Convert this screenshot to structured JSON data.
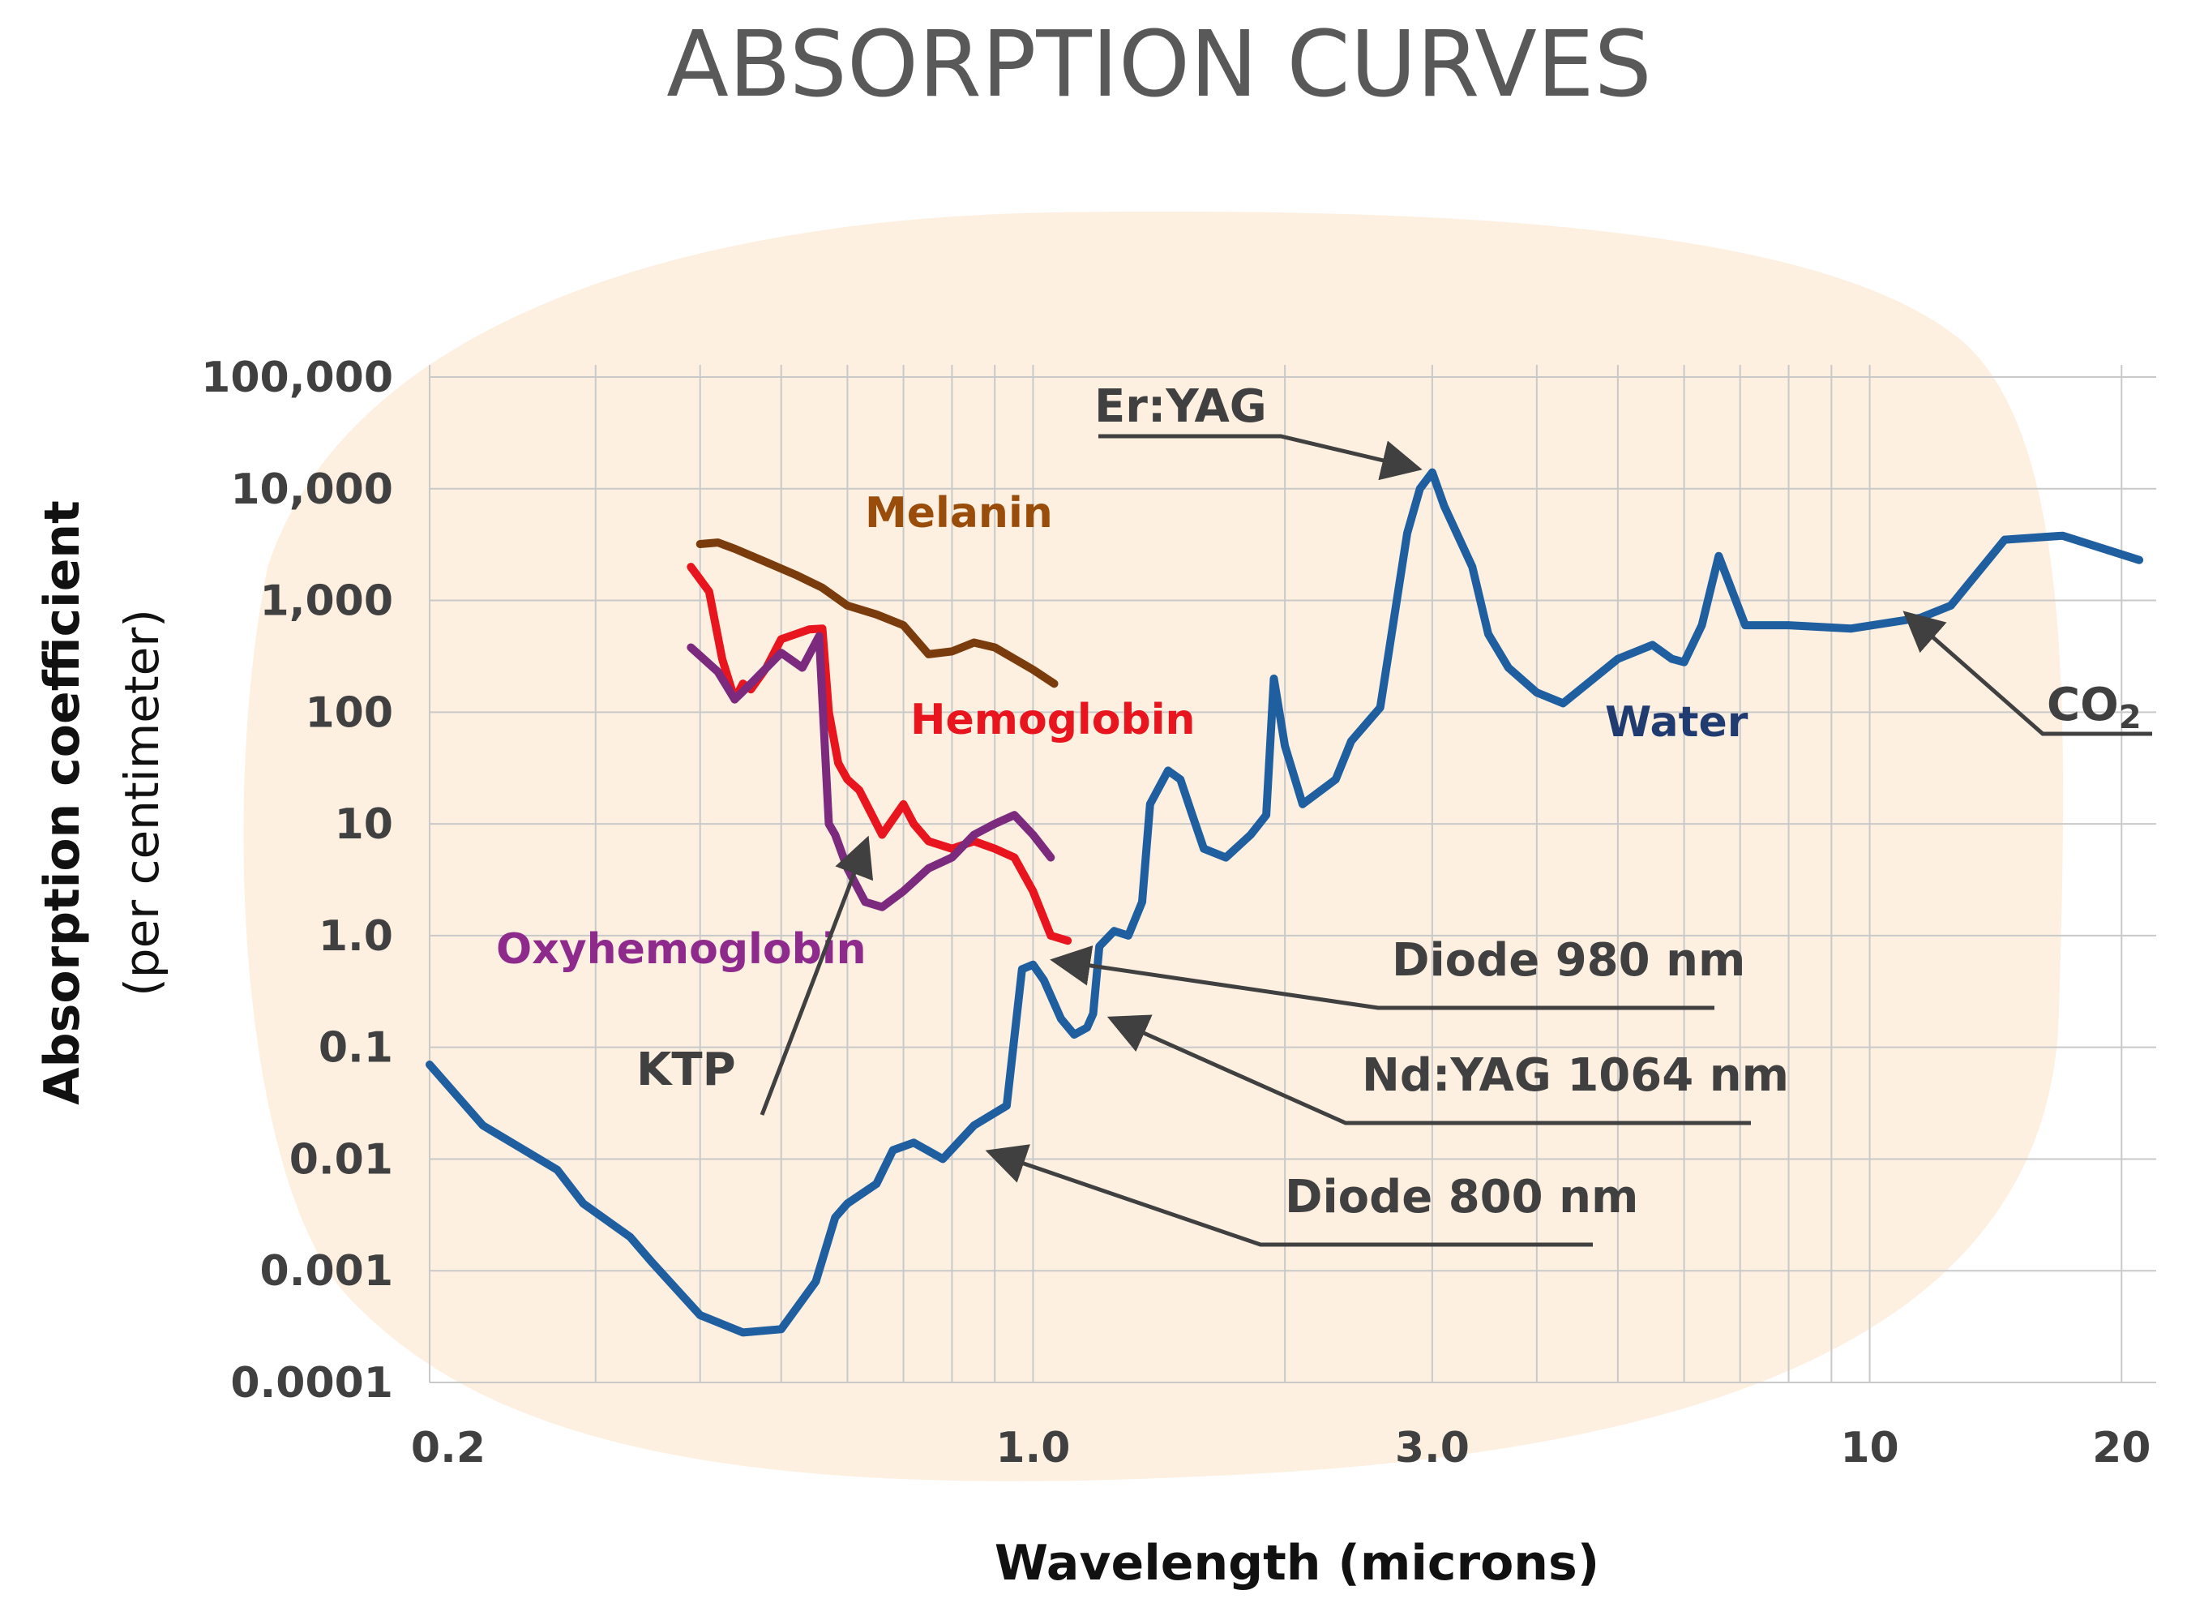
{
  "chart_data": {
    "type": "line",
    "title": "ABSORPTION CURVES",
    "xlabel": "Wavelength (microns)",
    "ylabel": "Absorption coefficient",
    "ylabel_sub": "(per centimeter)",
    "x_scale": "log",
    "y_scale": "log",
    "xlim": [
      0.19,
      22
    ],
    "ylim": [
      0.0001,
      100000
    ],
    "x_ticks": [
      {
        "value": 0.2,
        "label": "0.2"
      },
      {
        "value": 1.0,
        "label": "1.0"
      },
      {
        "value": 3.0,
        "label": "3.0"
      },
      {
        "value": 10,
        "label": "10"
      },
      {
        "value": 20,
        "label": "20"
      }
    ],
    "y_ticks": [
      {
        "value": 100000,
        "label": "100,000"
      },
      {
        "value": 10000,
        "label": "10,000"
      },
      {
        "value": 1000,
        "label": "1,000"
      },
      {
        "value": 100,
        "label": "100"
      },
      {
        "value": 10,
        "label": "10"
      },
      {
        "value": 1,
        "label": "1.0"
      },
      {
        "value": 0.1,
        "label": "0.1"
      },
      {
        "value": 0.01,
        "label": "0.01"
      },
      {
        "value": 0.001,
        "label": "0.001"
      },
      {
        "value": 0.0001,
        "label": "0.0001"
      }
    ],
    "x_gridlines": [
      0.3,
      0.4,
      0.5,
      0.6,
      0.7,
      0.8,
      0.9,
      1.0,
      2,
      3,
      4,
      5,
      6,
      7,
      8,
      9,
      10,
      20
    ],
    "grid": true,
    "series": [
      {
        "name": "Water",
        "label": "Water",
        "color": "#1f5fa0",
        "label_color": "#1f3b70",
        "x": [
          0.19,
          0.22,
          0.27,
          0.29,
          0.33,
          0.35,
          0.4,
          0.45,
          0.5,
          0.55,
          0.58,
          0.6,
          0.65,
          0.68,
          0.72,
          0.78,
          0.85,
          0.93,
          0.97,
          1.0,
          1.03,
          1.08,
          1.12,
          1.16,
          1.18,
          1.2,
          1.25,
          1.3,
          1.35,
          1.38,
          1.45,
          1.5,
          1.55,
          1.6,
          1.7,
          1.82,
          1.9,
          1.94,
          2.0,
          2.1,
          2.3,
          2.4,
          2.6,
          2.8,
          2.9,
          3.0,
          3.1,
          3.35,
          3.5,
          3.7,
          4.0,
          4.3,
          5.0,
          5.5,
          5.8,
          6.0,
          6.3,
          6.6,
          7.1,
          8.0,
          9.5,
          11.5,
          12.5,
          14.5,
          17,
          21
        ],
        "y": [
          0.07,
          0.02,
          0.008,
          0.004,
          0.002,
          0.0012,
          0.0004,
          0.00028,
          0.0003,
          0.0008,
          0.003,
          0.004,
          0.006,
          0.012,
          0.014,
          0.01,
          0.02,
          0.03,
          0.5,
          0.55,
          0.4,
          0.18,
          0.13,
          0.15,
          0.2,
          0.8,
          1.1,
          1.0,
          2.0,
          15,
          30,
          25,
          12,
          6,
          5,
          8,
          12,
          200,
          50,
          15,
          25,
          55,
          110,
          4000,
          10000,
          14000,
          7000,
          2000,
          500,
          250,
          150,
          120,
          300,
          400,
          300,
          280,
          600,
          2500,
          600,
          600,
          560,
          700,
          900,
          3500,
          3800,
          2300
        ]
      },
      {
        "name": "Melanin",
        "label": "Melanin",
        "color": "#7a3c0c",
        "label_color": "#9a4d0a",
        "x": [
          0.4,
          0.42,
          0.44,
          0.48,
          0.52,
          0.56,
          0.6,
          0.65,
          0.7,
          0.75,
          0.8,
          0.85,
          0.9,
          0.95,
          1.0,
          1.06
        ],
        "y": [
          3200,
          3300,
          2900,
          2200,
          1700,
          1300,
          900,
          750,
          600,
          330,
          350,
          420,
          380,
          300,
          240,
          180
        ]
      },
      {
        "name": "Hemoglobin",
        "label": "Hemoglobin",
        "color": "#e8141e",
        "label_color": "#e8141e",
        "x": [
          0.39,
          0.41,
          0.425,
          0.44,
          0.45,
          0.46,
          0.48,
          0.5,
          0.54,
          0.56,
          0.57,
          0.585,
          0.6,
          0.62,
          0.66,
          0.7,
          0.72,
          0.75,
          0.8,
          0.85,
          0.9,
          0.95,
          1.0,
          1.05,
          1.1
        ],
        "y": [
          2000,
          1200,
          300,
          130,
          180,
          160,
          250,
          450,
          550,
          560,
          100,
          35,
          25,
          20,
          8,
          15,
          10,
          7,
          6,
          7,
          6,
          5,
          2.5,
          1.0,
          0.9
        ]
      },
      {
        "name": "Oxyhemoglobin",
        "label": "Oxyhemoglobin",
        "color": "#7b2a7d",
        "label_color": "#8e2a8c",
        "x": [
          0.39,
          0.42,
          0.44,
          0.46,
          0.5,
          0.53,
          0.555,
          0.57,
          0.58,
          0.6,
          0.63,
          0.66,
          0.7,
          0.75,
          0.8,
          0.85,
          0.9,
          0.95,
          1.0,
          1.05
        ],
        "y": [
          380,
          230,
          130,
          180,
          340,
          250,
          480,
          10,
          8,
          4,
          2,
          1.8,
          2.5,
          4,
          5,
          8,
          10,
          12,
          8,
          5
        ]
      }
    ],
    "annotations": [
      {
        "label": "Er:YAG",
        "target_x": 2.94,
        "target_y": 10000
      },
      {
        "label": "CO",
        "subscript": "2",
        "target_x": 10.6,
        "target_y": 600
      },
      {
        "label": "Diode 980 nm",
        "target_x": 0.98,
        "target_y": 0.55
      },
      {
        "label": "Nd:YAG 1064 nm",
        "target_x": 1.064,
        "target_y": 0.13
      },
      {
        "label": "Diode 800 nm",
        "target_x": 0.8,
        "target_y": 0.01
      },
      {
        "label": "KTP",
        "target_x": 0.532,
        "target_y": 5
      }
    ]
  }
}
